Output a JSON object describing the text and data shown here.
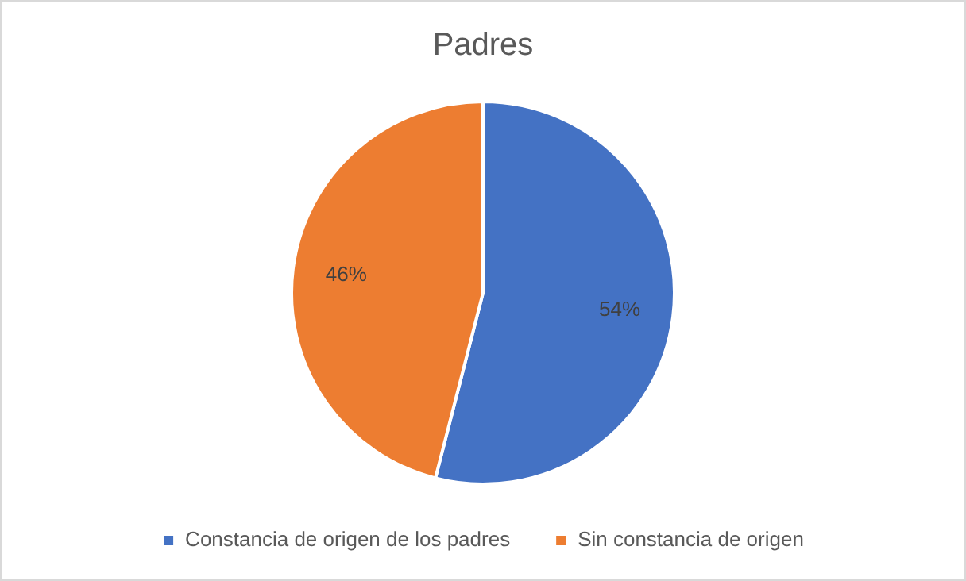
{
  "chart_data": {
    "type": "pie",
    "title": "Padres",
    "categories": [
      "Constancia de origen de los padres",
      "Sin constancia de origen"
    ],
    "values": [
      54,
      46
    ],
    "colors": [
      "#4472c4",
      "#ed7d31"
    ],
    "value_labels": [
      "54%",
      "46%"
    ],
    "legend": "bottom"
  }
}
